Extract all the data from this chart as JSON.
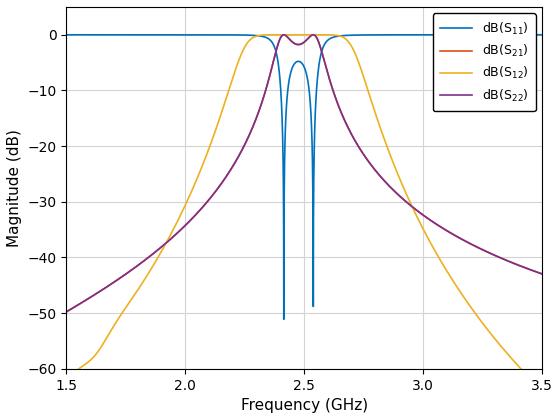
{
  "xlabel": "Frequency (GHz)",
  "ylabel": "Magnitude (dB)",
  "xlim": [
    1.5,
    3.5
  ],
  "ylim": [
    -60,
    5
  ],
  "yticks": [
    0,
    -10,
    -20,
    -30,
    -40,
    -50,
    -60
  ],
  "xticks": [
    1.5,
    2.0,
    2.5,
    3.0,
    3.5
  ],
  "colors": {
    "S11": "#0072BD",
    "S21": "#D95319",
    "S12": "#EDB120",
    "S22": "#7E2F8E"
  },
  "legend_labels": [
    "dB(S$_{11}$)",
    "dB(S$_{21}$)",
    "dB(S$_{12}$)",
    "dB(S$_{22}$)"
  ],
  "grid_color": "#d3d3d3",
  "bg_color": "#ffffff"
}
